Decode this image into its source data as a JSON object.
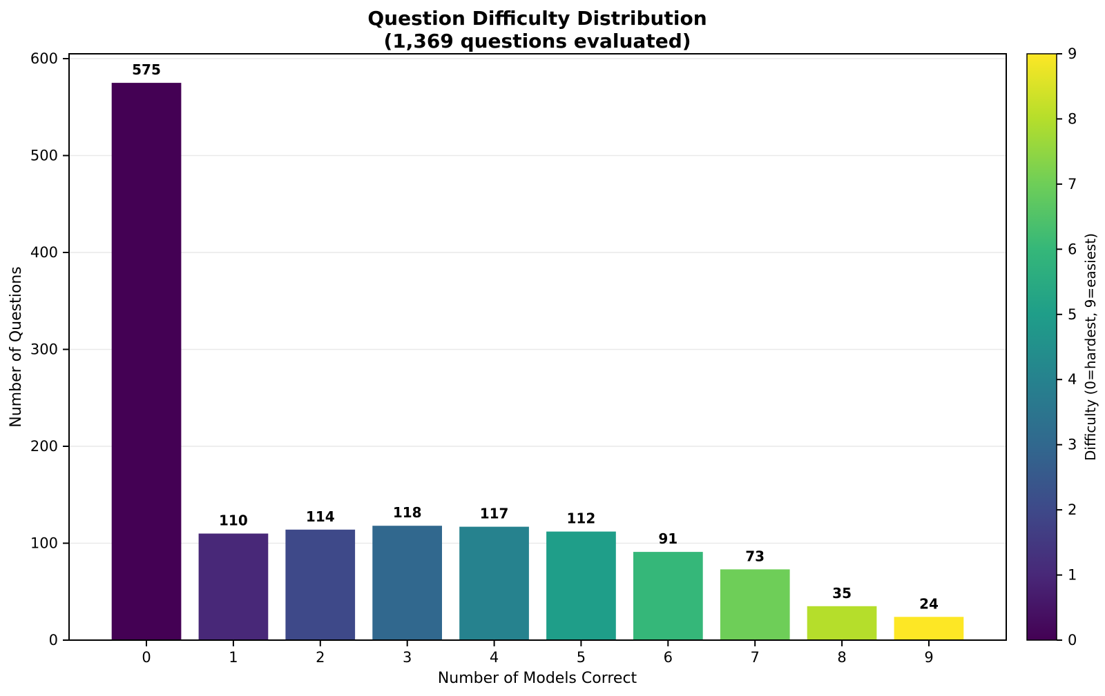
{
  "chart_data": {
    "type": "bar",
    "title": "Question Difficulty Distribution",
    "subtitle": "(1,369 questions evaluated)",
    "xlabel": "Number of Models Correct",
    "ylabel": "Number of Questions",
    "categories": [
      "0",
      "1",
      "2",
      "3",
      "4",
      "5",
      "6",
      "7",
      "8",
      "9"
    ],
    "values": [
      575,
      110,
      114,
      118,
      117,
      112,
      91,
      73,
      35,
      24
    ],
    "value_labels": [
      "575",
      "110",
      "114",
      "118",
      "117",
      "112",
      "91",
      "73",
      "35",
      "24"
    ],
    "bar_colors": [
      "#440154",
      "#482878",
      "#3e4989",
      "#31688e",
      "#26828e",
      "#1f9e89",
      "#35b779",
      "#6ece58",
      "#b5de2b",
      "#fde725"
    ],
    "bar_width": 0.8,
    "xlim": [
      -0.89,
      9.89
    ],
    "ylim": [
      0,
      605
    ],
    "yticks": [
      0,
      100,
      200,
      300,
      400,
      500,
      600
    ],
    "grid": "horizontal major gridlines, light gray",
    "legend": "none",
    "colorbar": {
      "label": "Difficulty (0=hardest, 9=easiest)",
      "min": 0,
      "max": 9,
      "ticks": [
        0,
        1,
        2,
        3,
        4,
        5,
        6,
        7,
        8,
        9
      ],
      "colormap": "viridis",
      "stops": [
        "#440154",
        "#482878",
        "#3e4989",
        "#31688e",
        "#26828e",
        "#1f9e89",
        "#35b779",
        "#6ece58",
        "#b5de2b",
        "#fde725"
      ]
    }
  },
  "colors": {
    "background": "#ffffff",
    "spine": "#000000",
    "grid": "#e9e9e9",
    "text": "#000000"
  }
}
